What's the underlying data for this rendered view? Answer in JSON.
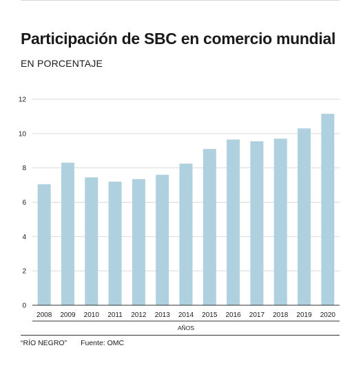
{
  "header": {
    "title": "Participación de SBC en comercio mundial",
    "subtitle": "EN PORCENTAJE"
  },
  "footer": {
    "credit": "“RÍO NEGRO”",
    "source": "Fuente: OMC"
  },
  "colors": {
    "bar": "#aed0df",
    "grid": "#d9d9d9",
    "axis": "#333333",
    "text": "#1a1a1a"
  },
  "chart_data": {
    "type": "bar",
    "title": "Participación de SBC en comercio mundial",
    "subtitle": "EN PORCENTAJE",
    "xlabel": "AÑOS",
    "ylabel": "",
    "categories": [
      "2008",
      "2009",
      "2010",
      "2011",
      "2012",
      "2013",
      "2014",
      "2015",
      "2016",
      "2017",
      "2018",
      "2019",
      "2020"
    ],
    "values": [
      7.05,
      8.3,
      7.45,
      7.2,
      7.35,
      7.6,
      8.25,
      9.1,
      9.65,
      9.55,
      9.7,
      10.3,
      11.15
    ],
    "ylim": [
      0,
      12
    ],
    "yticks": [
      0,
      2,
      4,
      6,
      8,
      10,
      12
    ],
    "grid": true,
    "legend": "none"
  }
}
